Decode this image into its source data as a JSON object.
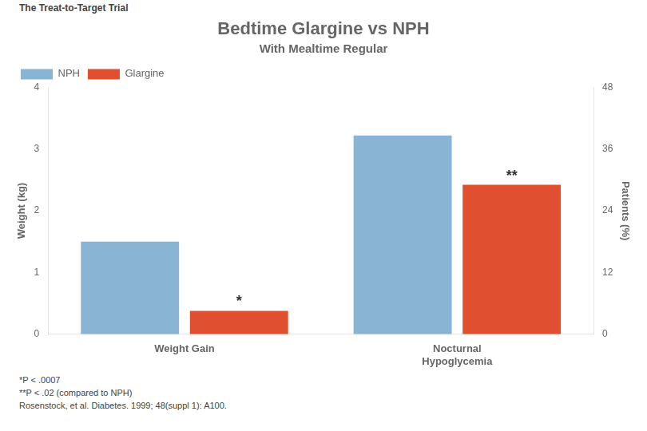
{
  "chart_data": {
    "type": "bar",
    "super_title": "The Treat-to-Target Trial",
    "title": "Bedtime Glargine vs NPH",
    "subtitle": "With Mealtime Regular",
    "categories": [
      "Weight Gain",
      "Nocturnal\nHypoglycemia"
    ],
    "series": [
      {
        "name": "NPH",
        "color": "#8ab4d4",
        "values": [
          1.5,
          3.22
        ]
      },
      {
        "name": "Glargine",
        "color": "#e05030",
        "values": [
          0.38,
          2.42
        ]
      }
    ],
    "y_label": "Weight (kg)",
    "y2_label": "Patients (%)",
    "ylim": [
      0,
      4
    ],
    "yticks": [
      0,
      1,
      2,
      3,
      4
    ],
    "y2lim": [
      0,
      48
    ],
    "y2ticks": [
      0,
      12,
      24,
      36,
      48
    ],
    "annotations": [
      {
        "text": "*",
        "category": "Weight Gain",
        "series": "Glargine"
      },
      {
        "text": "**",
        "category": "Nocturnal\nHypoglycemia",
        "series": "Glargine"
      }
    ],
    "notes": [
      "*P < .0007",
      "**P < .02 (compared to NPH)",
      "Rosenstock, et al. Diabetes. 1999; 48(suppl 1): A100."
    ],
    "legend": "upper left",
    "grid": false,
    "data_labels": false
  }
}
